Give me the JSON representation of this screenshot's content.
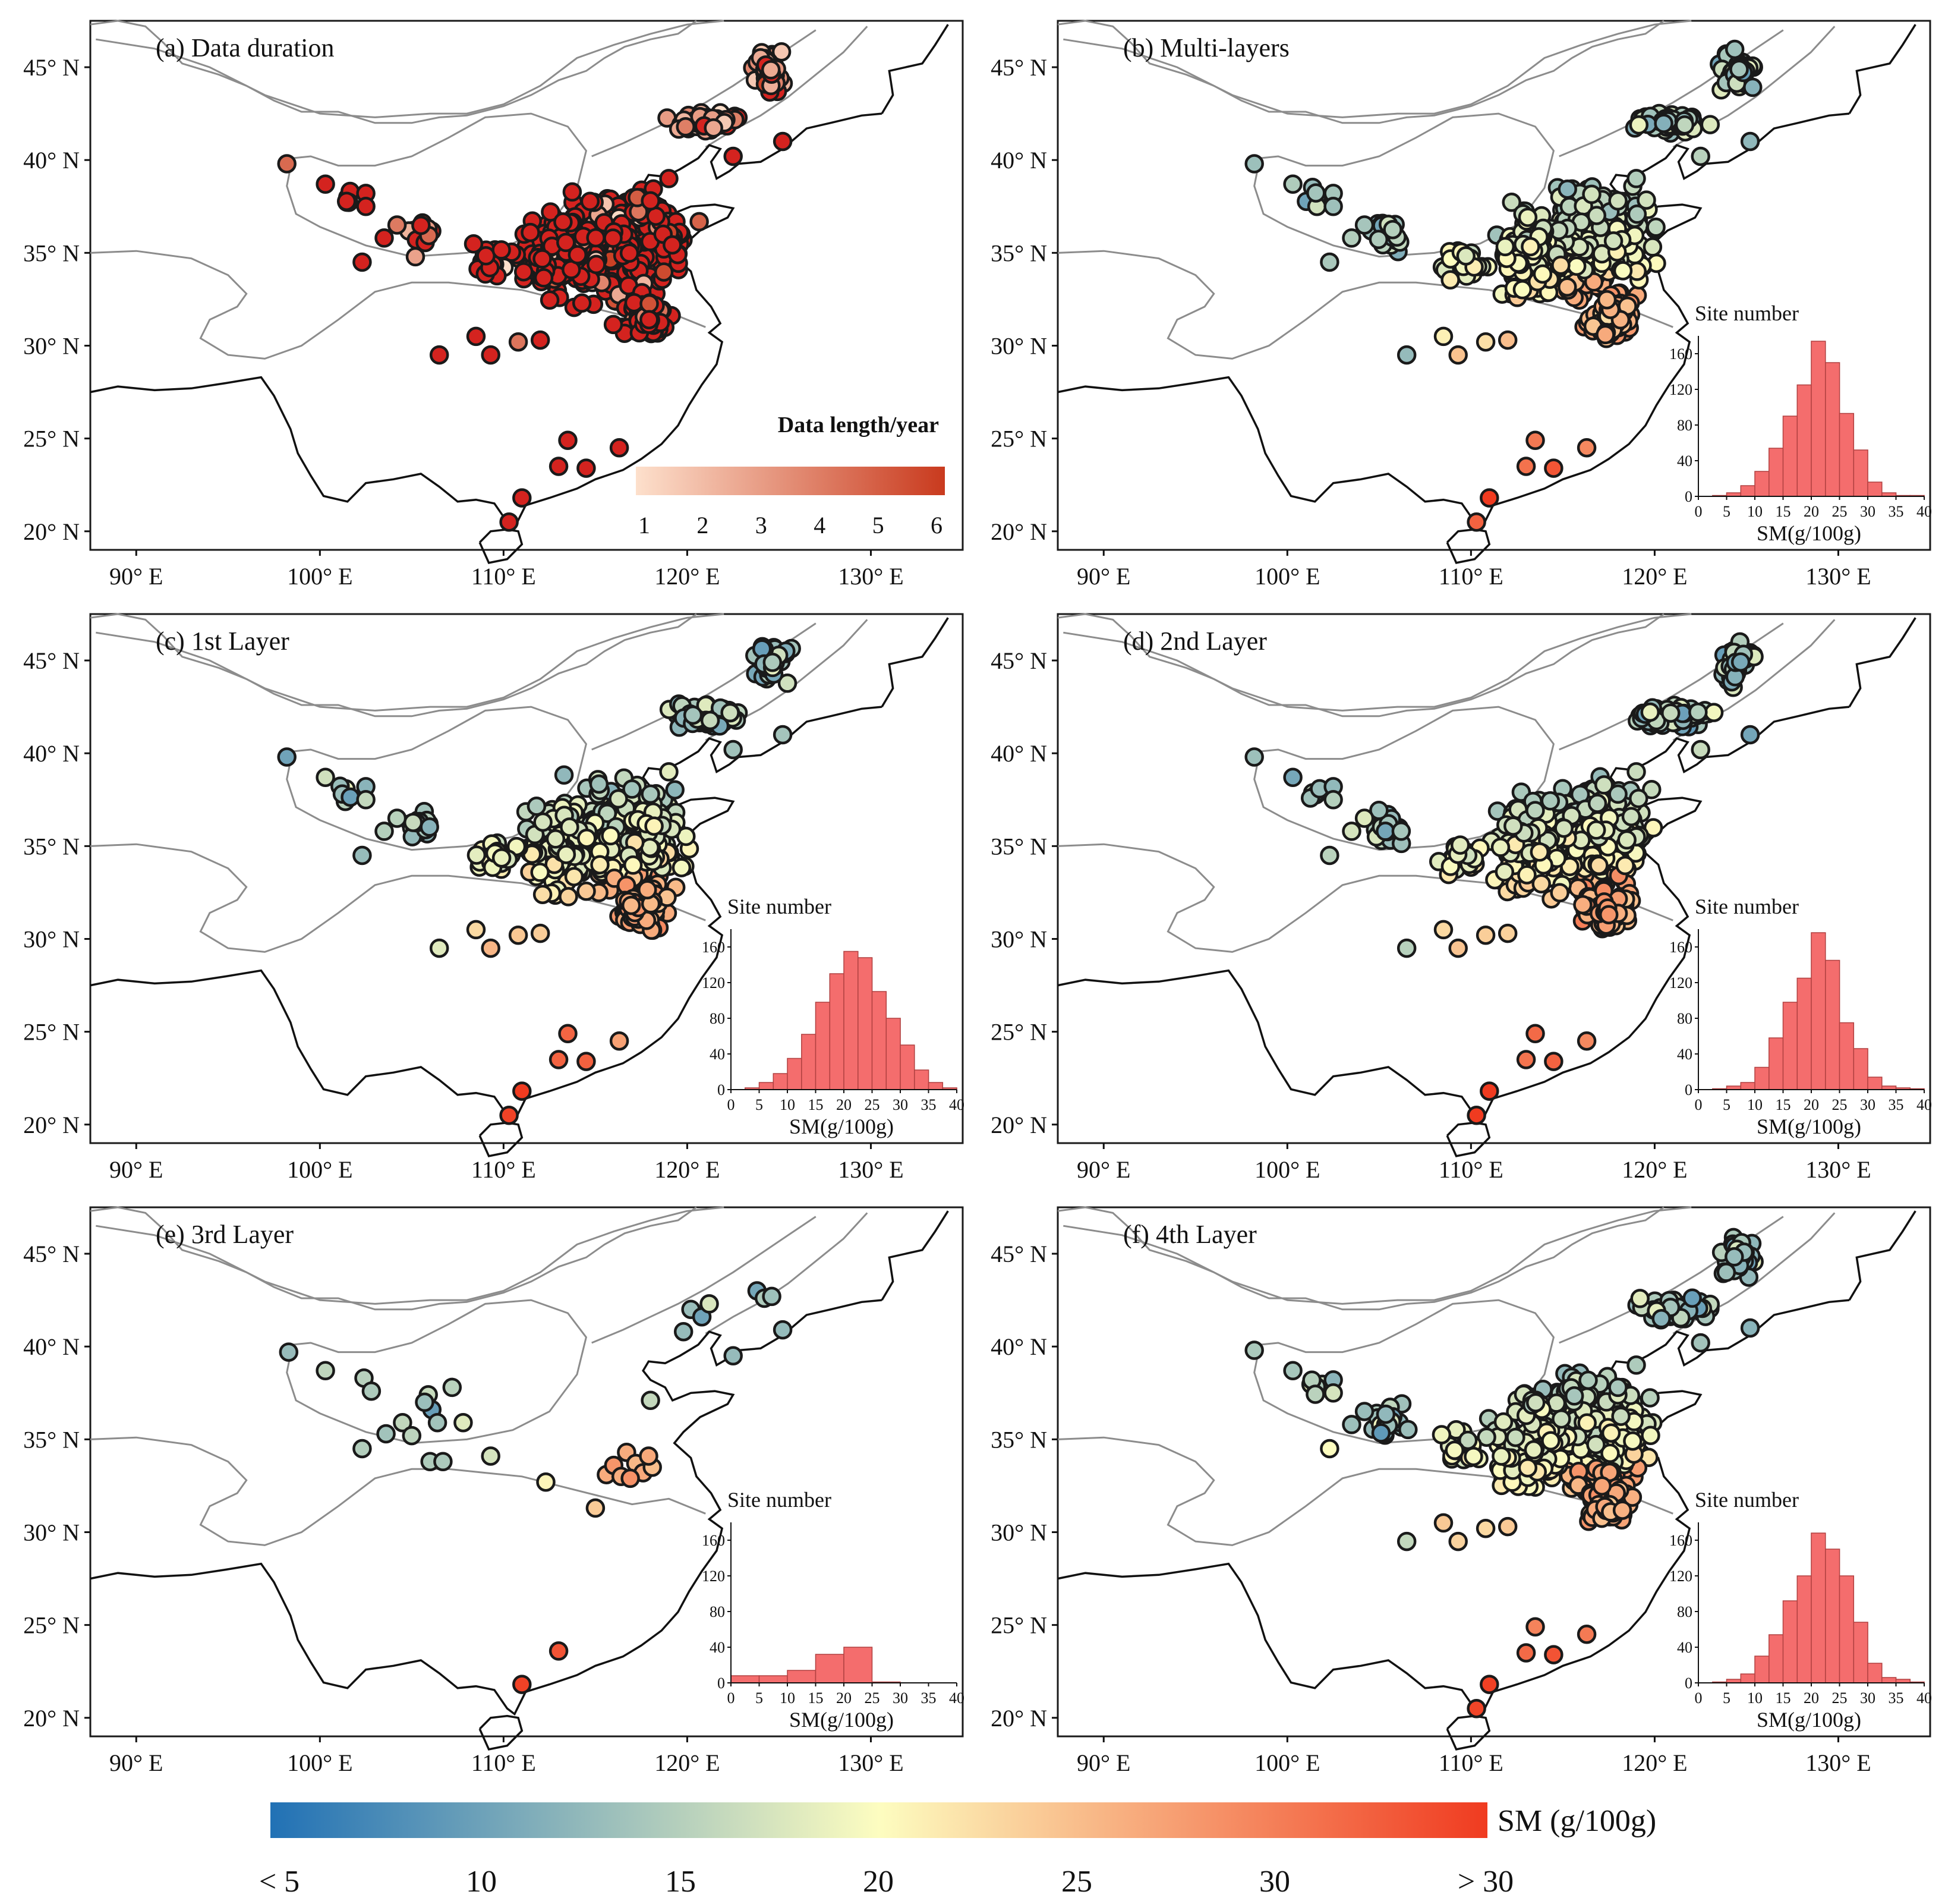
{
  "colors": {
    "sm_ramp": [
      "#2171b5",
      "#fdfdc0",
      "#f03b20"
    ],
    "duration_ramp": [
      "#fde0cc",
      "#c93a1e"
    ],
    "duration_site": "#d4231f",
    "hist_bar": "#f46d6d"
  },
  "axes": {
    "lat_labels": [
      "45° N",
      "40° N",
      "35° N",
      "30° N",
      "25° N",
      "20° N"
    ],
    "lon_labels": [
      "90° E",
      "100° E",
      "110° E",
      "120° E",
      "130° E"
    ]
  },
  "panels": [
    {
      "id": "a",
      "title": "(a) Data duration",
      "mode": "duration",
      "legend": {
        "title": "Data length/year",
        "ticks": [
          "1",
          "2",
          "3",
          "4",
          "5",
          "6"
        ]
      }
    },
    {
      "id": "b",
      "title": "(b)  Multi-layers",
      "mode": "sm",
      "hist": 0
    },
    {
      "id": "c",
      "title": "(c) 1st Layer",
      "mode": "sm",
      "hist": 1
    },
    {
      "id": "d",
      "title": "(d) 2nd Layer",
      "mode": "sm",
      "hist": 2
    },
    {
      "id": "e",
      "title": "(e) 3rd Layer",
      "mode": "sm3",
      "hist": 3
    },
    {
      "id": "f",
      "title": "(f) 4th Layer",
      "mode": "sm",
      "hist": 4
    }
  ],
  "chart_data": [
    {
      "type": "bar",
      "panel": "b",
      "title": "Site number",
      "xlabel": "SM(g/100g)",
      "categories": [
        "0-2.5",
        "2.5-5",
        "5-7.5",
        "7.5-10",
        "10-12.5",
        "12.5-15",
        "15-17.5",
        "17.5-20",
        "20-22.5",
        "22.5-25",
        "25-27.5",
        "27.5-30",
        "30-32.5",
        "32.5-35",
        "35-37.5",
        "37.5-40"
      ],
      "values": [
        0,
        1,
        4,
        12,
        28,
        54,
        90,
        125,
        174,
        150,
        93,
        52,
        16,
        4,
        1,
        1
      ],
      "xlim": [
        0,
        40
      ],
      "ylim": [
        0,
        180
      ],
      "x_ticks": [
        "0",
        "5",
        "10",
        "15",
        "20",
        "25",
        "30",
        "35",
        "40"
      ],
      "y_ticks": [
        "0",
        "40",
        "80",
        "120",
        "160"
      ]
    },
    {
      "type": "bar",
      "panel": "c",
      "title": "Site number",
      "xlabel": "SM(g/100g)",
      "categories": [
        "0-2.5",
        "2.5-5",
        "5-7.5",
        "7.5-10",
        "10-12.5",
        "12.5-15",
        "15-17.5",
        "17.5-20",
        "20-22.5",
        "22.5-25",
        "25-27.5",
        "27.5-30",
        "30-32.5",
        "32.5-35",
        "35-37.5",
        "37.5-40"
      ],
      "values": [
        0,
        2,
        8,
        18,
        35,
        62,
        98,
        130,
        155,
        148,
        110,
        80,
        50,
        22,
        8,
        2
      ],
      "xlim": [
        0,
        40
      ],
      "ylim": [
        0,
        180
      ],
      "x_ticks": [
        "0",
        "5",
        "10",
        "15",
        "20",
        "25",
        "30",
        "35",
        "40"
      ],
      "y_ticks": [
        "0",
        "40",
        "80",
        "120",
        "160"
      ]
    },
    {
      "type": "bar",
      "panel": "d",
      "title": "Site number",
      "xlabel": "SM(g/100g)",
      "categories": [
        "0-2.5",
        "2.5-5",
        "5-7.5",
        "7.5-10",
        "10-12.5",
        "12.5-15",
        "15-17.5",
        "17.5-20",
        "20-22.5",
        "22.5-25",
        "25-27.5",
        "27.5-30",
        "30-32.5",
        "32.5-35",
        "35-37.5",
        "37.5-40"
      ],
      "values": [
        0,
        1,
        4,
        8,
        25,
        58,
        98,
        125,
        176,
        145,
        75,
        46,
        14,
        4,
        2,
        1
      ],
      "xlim": [
        0,
        40
      ],
      "ylim": [
        0,
        180
      ],
      "x_ticks": [
        "0",
        "5",
        "10",
        "15",
        "20",
        "25",
        "30",
        "35",
        "40"
      ],
      "y_ticks": [
        "0",
        "40",
        "80",
        "120",
        "160"
      ]
    },
    {
      "type": "bar",
      "panel": "e",
      "title": "Site number",
      "xlabel": "SM(g/100g)",
      "categories": [
        "0-5",
        "5-10",
        "10-15",
        "15-20",
        "20-25",
        "25-30",
        "30-35",
        "35-40"
      ],
      "values": [
        8,
        8,
        14,
        32,
        40,
        1,
        0,
        0
      ],
      "xlim": [
        0,
        40
      ],
      "ylim": [
        0,
        180
      ],
      "x_ticks": [
        "0",
        "5",
        "10",
        "15",
        "20",
        "25",
        "30",
        "35",
        "40"
      ],
      "y_ticks": [
        "0",
        "40",
        "80",
        "120",
        "160"
      ]
    },
    {
      "type": "bar",
      "panel": "f",
      "title": "Site number",
      "xlabel": "SM(g/100g)",
      "categories": [
        "0-2.5",
        "2.5-5",
        "5-7.5",
        "7.5-10",
        "10-12.5",
        "12.5-15",
        "15-17.5",
        "17.5-20",
        "20-22.5",
        "22.5-25",
        "25-27.5",
        "27.5-30",
        "30-32.5",
        "32.5-35",
        "35-37.5",
        "37.5-40"
      ],
      "values": [
        0,
        1,
        4,
        10,
        30,
        54,
        92,
        120,
        168,
        150,
        120,
        68,
        22,
        6,
        4,
        1
      ],
      "xlim": [
        0,
        40
      ],
      "ylim": [
        0,
        180
      ],
      "x_ticks": [
        "0",
        "5",
        "10",
        "15",
        "20",
        "25",
        "30",
        "35",
        "40"
      ],
      "y_ticks": [
        "0",
        "40",
        "80",
        "120",
        "160"
      ]
    }
  ],
  "colorbar": {
    "title": "SM (g/100g)",
    "tick_labels": [
      "< 5",
      "10",
      "15",
      "20",
      "25",
      "30",
      "> 30"
    ]
  }
}
